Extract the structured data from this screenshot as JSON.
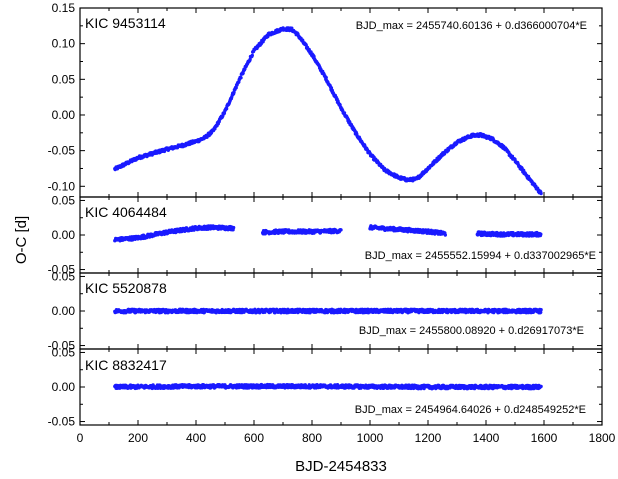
{
  "chart_data": {
    "type": "scatter",
    "xlabel": "BJD-2454833",
    "ylabel": "O-C [d]",
    "xlim": [
      0,
      1800
    ],
    "x_ticks": [
      0,
      200,
      400,
      600,
      800,
      1000,
      1200,
      1400,
      1600,
      1800
    ],
    "marker_color": "#1a1aff",
    "panels": [
      {
        "label": "KIC 9453114",
        "equation": "BJD_max = 2455740.60136 + 0.d366000704*E",
        "ylim": [
          -0.115,
          0.15
        ],
        "y_ticks": [
          -0.1,
          -0.05,
          0.0,
          0.05,
          0.1,
          0.15
        ],
        "y_tick_labels": [
          "-0.10",
          "-0.05",
          "0.00",
          "0.05",
          "0.10",
          "0.15"
        ],
        "segments": [
          {
            "x": [
              120,
              150,
              200,
              250,
              300,
              350,
              400,
              430,
              460,
              500,
              550,
              600,
              650,
              700,
              730,
              750,
              800,
              850,
              900,
              950,
              1000,
              1050,
              1100,
              1130,
              1160,
              1200,
              1250,
              1300,
              1350,
              1380,
              1420,
              1460,
              1500,
              1550,
              1590
            ],
            "y": [
              -0.076,
              -0.07,
              -0.06,
              -0.054,
              -0.048,
              -0.043,
              -0.037,
              -0.032,
              -0.022,
              0.005,
              0.05,
              0.09,
              0.113,
              0.121,
              0.12,
              0.113,
              0.085,
              0.05,
              0.01,
              -0.025,
              -0.055,
              -0.077,
              -0.088,
              -0.091,
              -0.09,
              -0.075,
              -0.055,
              -0.038,
              -0.029,
              -0.028,
              -0.033,
              -0.045,
              -0.064,
              -0.09,
              -0.11
            ]
          }
        ]
      },
      {
        "label": "KIC 4064484",
        "equation": "BJD_max = 2455552.15994 + 0.d337002965*E",
        "ylim": [
          -0.055,
          0.055
        ],
        "y_ticks": [
          -0.05,
          0.0,
          0.05
        ],
        "y_tick_labels": [
          "-0.05",
          "0.00",
          "0.05"
        ],
        "segments": [
          {
            "x": [
              120,
              200,
              300,
              400,
              450,
              530
            ],
            "y": [
              -0.007,
              -0.004,
              0.004,
              0.01,
              0.011,
              0.01
            ]
          },
          {
            "x": [
              630,
              700,
              800,
              900
            ],
            "y": [
              0.004,
              0.005,
              0.005,
              0.006
            ]
          },
          {
            "x": [
              1000,
              1100,
              1200,
              1260
            ],
            "y": [
              0.011,
              0.008,
              0.005,
              0.002
            ]
          },
          {
            "x": [
              1370,
              1450,
              1590
            ],
            "y": [
              0.002,
              0.001,
              0.001
            ]
          }
        ]
      },
      {
        "label": "KIC 5520878",
        "equation": "BJD_max = 2455800.08920 + 0.d26917073*E",
        "ylim": [
          -0.055,
          0.055
        ],
        "y_ticks": [
          -0.05,
          0.0,
          0.05
        ],
        "y_tick_labels": [
          "-0.05",
          "0.00",
          "0.05"
        ],
        "segments": [
          {
            "x": [
              120,
              400,
              800,
              1200,
              1590
            ],
            "y": [
              0.0,
              0.0,
              0.0,
              0.0,
              0.0
            ]
          }
        ]
      },
      {
        "label": "KIC 8832417",
        "equation": "BJD_max = 2454964.64026 + 0.d248549252*E",
        "ylim": [
          -0.055,
          0.055
        ],
        "y_ticks": [
          -0.05,
          0.0,
          0.05
        ],
        "y_tick_labels": [
          "-0.05",
          "0.00",
          "0.05"
        ],
        "segments": [
          {
            "x": [
              120,
              400,
              800,
              1200,
              1590
            ],
            "y": [
              0.0,
              0.001,
              0.001,
              0.0,
              0.0
            ]
          }
        ]
      }
    ]
  }
}
